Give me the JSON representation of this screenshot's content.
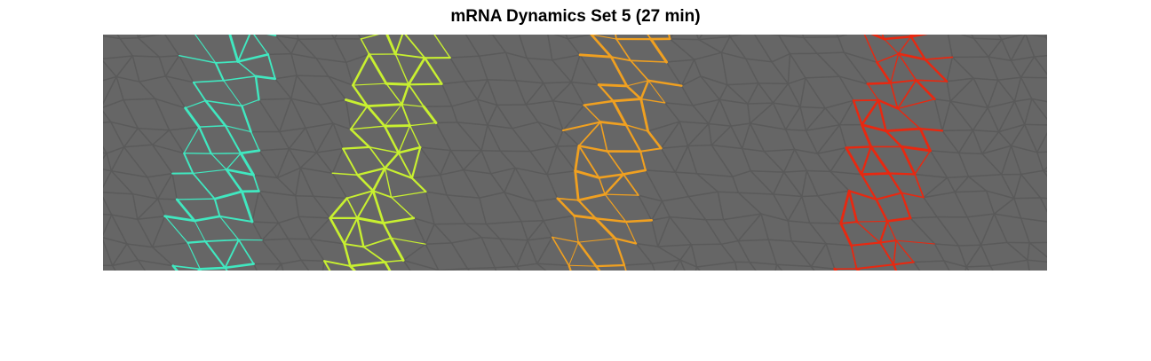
{
  "figure": {
    "title": "mRNA Dynamics Set 5 (27 min)"
  },
  "image": {
    "background_color": "#666666",
    "cell_edge_color": "#5a5a5a",
    "stripes": [
      {
        "name": "cyan",
        "color": "#40e8c0"
      },
      {
        "name": "yellow-green",
        "color": "#c8f030"
      },
      {
        "name": "orange",
        "color": "#f0a020"
      },
      {
        "name": "red",
        "color": "#e82810"
      }
    ]
  }
}
